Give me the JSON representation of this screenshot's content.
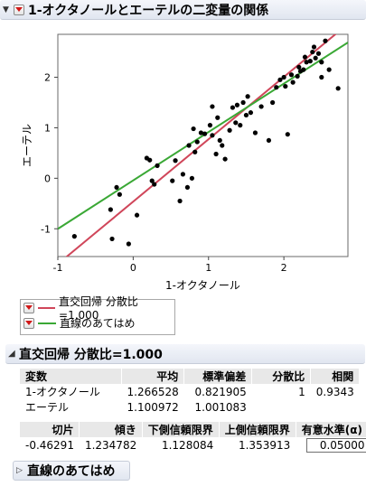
{
  "header": {
    "title": "1-オクタノールとエーテルの二変量の関係"
  },
  "chart_data": {
    "type": "scatter",
    "xlabel": "1-オクタノール",
    "ylabel": "エーテル",
    "xlim": [
      -1,
      2.85
    ],
    "ylim": [
      -1.55,
      2.85
    ],
    "xticks": [
      "-1",
      "0",
      "1",
      "2"
    ],
    "yticks": [
      "-1",
      "0",
      "1",
      "2"
    ],
    "grid": false,
    "points": [
      [
        -0.78,
        -1.15
      ],
      [
        -0.3,
        -0.62
      ],
      [
        -0.22,
        -0.18
      ],
      [
        -0.18,
        -0.32
      ],
      [
        -0.28,
        -1.2
      ],
      [
        -0.06,
        -1.3
      ],
      [
        0.05,
        -0.73
      ],
      [
        0.18,
        0.4
      ],
      [
        0.22,
        0.36
      ],
      [
        0.32,
        0.25
      ],
      [
        0.25,
        -0.05
      ],
      [
        0.28,
        -0.12
      ],
      [
        0.52,
        -0.05
      ],
      [
        0.56,
        0.35
      ],
      [
        0.62,
        -0.45
      ],
      [
        0.66,
        0.08
      ],
      [
        0.72,
        -0.18
      ],
      [
        0.74,
        0.65
      ],
      [
        0.78,
        0.0
      ],
      [
        0.82,
        0.52
      ],
      [
        0.85,
        0.72
      ],
      [
        0.9,
        0.9
      ],
      [
        0.95,
        0.88
      ],
      [
        1.02,
        1.05
      ],
      [
        1.05,
        0.85
      ],
      [
        1.1,
        0.48
      ],
      [
        1.12,
        1.2
      ],
      [
        1.18,
        0.65
      ],
      [
        1.22,
        0.38
      ],
      [
        1.28,
        0.95
      ],
      [
        1.32,
        1.4
      ],
      [
        1.36,
        1.1
      ],
      [
        1.38,
        1.45
      ],
      [
        1.42,
        1.05
      ],
      [
        1.46,
        1.5
      ],
      [
        1.5,
        1.25
      ],
      [
        1.52,
        1.62
      ],
      [
        1.56,
        1.3
      ],
      [
        1.62,
        0.9
      ],
      [
        1.7,
        1.42
      ],
      [
        1.8,
        0.75
      ],
      [
        1.85,
        1.5
      ],
      [
        1.9,
        1.8
      ],
      [
        1.95,
        1.95
      ],
      [
        2.0,
        2.0
      ],
      [
        2.02,
        1.82
      ],
      [
        2.05,
        0.87
      ],
      [
        2.1,
        2.05
      ],
      [
        2.12,
        1.9
      ],
      [
        2.18,
        2.02
      ],
      [
        2.22,
        2.12
      ],
      [
        2.26,
        2.15
      ],
      [
        2.28,
        2.4
      ],
      [
        2.3,
        2.3
      ],
      [
        2.35,
        2.32
      ],
      [
        2.38,
        2.5
      ],
      [
        2.42,
        2.38
      ],
      [
        2.46,
        2.47
      ],
      [
        2.5,
        2.3
      ],
      [
        2.55,
        2.72
      ],
      [
        2.6,
        2.15
      ],
      [
        2.72,
        1.78
      ],
      [
        0.8,
        0.98
      ],
      [
        1.05,
        1.42
      ],
      [
        2.5,
        2.0
      ],
      [
        2.2,
        2.2
      ],
      [
        1.15,
        0.75
      ],
      [
        2.4,
        2.6
      ]
    ],
    "series": [
      {
        "name": "直交回帰 分散比=1.000",
        "color": "#d0465a",
        "intercept": -0.46291,
        "slope": 1.234782
      },
      {
        "name": "直線のあてはめ",
        "color": "#3aa835",
        "intercept": -0.0435,
        "slope": 0.9587
      }
    ]
  },
  "legend": {
    "items": [
      "直交回帰 分散比=1.000",
      "直線のあてはめ"
    ]
  },
  "report": {
    "title": "直交回帰 分散比=1.000",
    "table1": {
      "headers": [
        "変数",
        "平均",
        "標準偏差",
        "分散比",
        "相関"
      ],
      "rows": [
        [
          "1-オクタノール",
          "1.266528",
          "0.821905",
          "1",
          "0.9343"
        ],
        [
          "エーテル",
          "1.100972",
          "1.001083",
          "",
          ""
        ]
      ]
    },
    "table2": {
      "headers": [
        "切片",
        "傾き",
        "下側信頼限界",
        "上側信頼限界",
        "有意水準(α)"
      ],
      "row": [
        "-0.46291",
        "1.234782",
        "1.128084",
        "1.353913",
        "0.05000"
      ]
    }
  },
  "fit_section": {
    "title": "直線のあてはめ"
  }
}
